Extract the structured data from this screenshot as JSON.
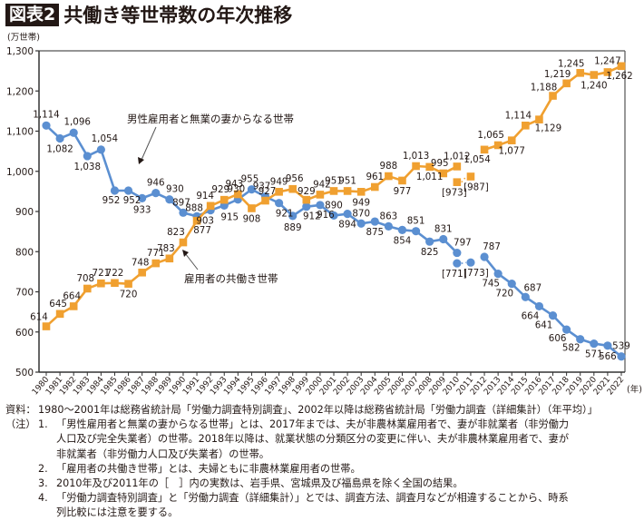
{
  "header": {
    "badge": "図表2",
    "title": "共働き等世帯数の年次推移"
  },
  "chart_data": {
    "type": "line",
    "title": "共働き等世帯数の年次推移",
    "ylabel": "(万世帯)",
    "xlabel": "(年)",
    "ylim": [
      500,
      1300
    ],
    "yticks": [
      500,
      600,
      700,
      800,
      900,
      1000,
      1100,
      1200,
      1300
    ],
    "ytick_labels": [
      "500",
      "600",
      "700",
      "800",
      "900",
      "1,000",
      "1,100",
      "1,200",
      "1,300"
    ],
    "x": [
      1980,
      1981,
      1982,
      1983,
      1984,
      1985,
      1986,
      1987,
      1988,
      1989,
      1990,
      1991,
      1992,
      1993,
      1994,
      1995,
      1996,
      1997,
      1998,
      1999,
      2000,
      2001,
      2002,
      2003,
      2004,
      2005,
      2006,
      2007,
      2008,
      2009,
      2010,
      2011,
      2012,
      2013,
      2014,
      2015,
      2016,
      2017,
      2018,
      2019,
      2020,
      2021,
      2022
    ],
    "grid": false,
    "series": [
      {
        "name": "男性雇用者と無業の妻からなる世帯",
        "color": "#5b8fd1",
        "marker": "circle",
        "values": [
          1114,
          1082,
          1096,
          1038,
          1054,
          952,
          952,
          933,
          946,
          930,
          897,
          888,
          903,
          915,
          930,
          955,
          937,
          921,
          889,
          912,
          916,
          890,
          894,
          870,
          875,
          863,
          854,
          851,
          825,
          831,
          797,
          null,
          787,
          745,
          720,
          687,
          664,
          641,
          606,
          582,
          571,
          566,
          539
        ],
        "bracketed": [
          {
            "x": 2010,
            "value": 771,
            "label": "[771]"
          },
          {
            "x": 2011,
            "value": 773,
            "label": "[773]"
          }
        ]
      },
      {
        "name": "雇用者の共働き世帯",
        "color": "#f0a030",
        "marker": "square",
        "values": [
          614,
          645,
          664,
          708,
          721,
          722,
          720,
          748,
          771,
          783,
          823,
          877,
          914,
          929,
          943,
          908,
          927,
          949,
          956,
          929,
          942,
          951,
          951,
          949,
          961,
          988,
          977,
          1013,
          1011,
          995,
          1012,
          null,
          1054,
          1065,
          1077,
          1114,
          1129,
          1188,
          1219,
          1245,
          1240,
          1247,
          1262
        ],
        "bracketed": [
          {
            "x": 2010,
            "value": 973,
            "label": "[973]"
          },
          {
            "x": 2011,
            "value": 987,
            "label": "[987]"
          }
        ]
      }
    ],
    "annotations": [
      {
        "text": "男性雇用者と無業の妻からなる世帯",
        "points_to": "1986 男性雇用者と無業の妻からなる世帯"
      },
      {
        "text": "雇用者の共働き世帯",
        "points_to": "1990 雇用者の共働き世帯"
      }
    ]
  },
  "notes": {
    "source_prefix": "資料：",
    "source": "1980～2001年は総務省統計局「労働力調査特別調査」、2002年以降は総務省統計局「労働力調査（詳細集計）（年平均）」",
    "note_prefix": "（注）",
    "items": [
      {
        "num": "1.",
        "lines": [
          "「男性雇用者と無業の妻からなる世帯」とは、2017年までは、夫が非農林業雇用者で、妻が非就業者（非労働力",
          "人口及び完全失業者）の世帯。2018年以降は、就業状態の分類区分の変更に伴い、夫が非農林業雇用者で、妻が",
          "非就業者（非労働力人口及び失業者）の世帯。"
        ]
      },
      {
        "num": "2.",
        "lines": [
          "「雇用者の共働き世帯」とは、夫婦ともに非農林業雇用者の世帯。"
        ]
      },
      {
        "num": "3.",
        "lines": [
          "2010年及び2011年の［　］内の実数は、岩手県、宮城県及び福島県を除く全国の結果。"
        ]
      },
      {
        "num": "4.",
        "lines": [
          "「労働力調査特別調査」と「労働力調査（詳細集計）」とでは、調査方法、調査月などが相違することから、時系",
          "列比較には注意を要する。"
        ]
      }
    ]
  }
}
